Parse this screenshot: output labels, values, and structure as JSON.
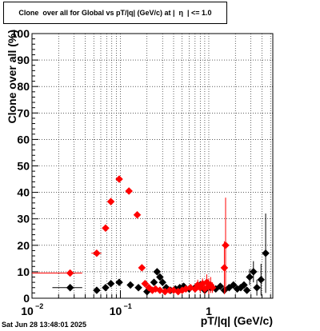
{
  "title": "Clone  over all for Global vs pT/|q| (GeV/c) at |  η  | <= 1.0",
  "footer": "Sat Jun 28 13:48:01 2025",
  "colors": {
    "series_black": "#000000",
    "series_red": "#ff0000",
    "grid": "#000000"
  },
  "chart_data": {
    "type": "scatter",
    "xlabel": "pT/|q| (GeV/c)",
    "ylabel": "Clone  over all (%)",
    "xscale": "log",
    "xlim": [
      0.01,
      5.3
    ],
    "ylim": [
      0,
      100
    ],
    "grid": true,
    "yticks": [
      "0",
      "10",
      "20",
      "30",
      "40",
      "50",
      "60",
      "70",
      "80",
      "90",
      "100"
    ],
    "xticks": [
      {
        "base": "10",
        "exp": "−2",
        "value": 0.01
      },
      {
        "base": "10",
        "exp": "−1",
        "value": 0.1
      },
      {
        "base": "1",
        "exp": "",
        "value": 1
      }
    ],
    "series": [
      {
        "color": "#000000",
        "points": [
          {
            "x": 0.027,
            "y": 4,
            "xerr": [
              0.017,
              0.037
            ],
            "yerr": 0
          },
          {
            "x": 0.054,
            "y": 3,
            "yerr": 0
          },
          {
            "x": 0.068,
            "y": 4,
            "yerr": 0
          },
          {
            "x": 0.078,
            "y": 5.5,
            "yerr": 0
          },
          {
            "x": 0.097,
            "y": 6,
            "yerr": 0
          },
          {
            "x": 0.13,
            "y": 5,
            "yerr": 0
          },
          {
            "x": 0.16,
            "y": 4,
            "yerr": 0
          },
          {
            "x": 0.2,
            "y": 2.5,
            "yerr": 0
          },
          {
            "x": 0.24,
            "y": 6,
            "yerr": 0
          },
          {
            "x": 0.26,
            "y": 10,
            "yerr": 0
          },
          {
            "x": 0.28,
            "y": 8,
            "yerr": 0
          },
          {
            "x": 0.3,
            "y": 6,
            "yerr": 0
          },
          {
            "x": 0.33,
            "y": 4,
            "yerr": 0
          },
          {
            "x": 0.37,
            "y": 3,
            "yerr": 0
          },
          {
            "x": 0.42,
            "y": 3.5,
            "yerr": 0
          },
          {
            "x": 0.47,
            "y": 4,
            "yerr": 0
          },
          {
            "x": 0.52,
            "y": 4.5,
            "yerr": 0
          },
          {
            "x": 0.6,
            "y": 3.5,
            "yerr": 0
          },
          {
            "x": 0.7,
            "y": 4,
            "yerr": 0
          },
          {
            "x": 0.8,
            "y": 5,
            "yerr": 0
          },
          {
            "x": 0.9,
            "y": 3,
            "yerr": 0
          },
          {
            "x": 1.05,
            "y": 4,
            "yerr": 0
          },
          {
            "x": 1.2,
            "y": 3.5,
            "yerr": 0
          },
          {
            "x": 1.35,
            "y": 4.5,
            "yerr": 0
          },
          {
            "x": 1.5,
            "y": 3,
            "yerr": 0
          },
          {
            "x": 1.7,
            "y": 4,
            "yerr": 0
          },
          {
            "x": 1.9,
            "y": 5,
            "yerr": 0
          },
          {
            "x": 2.1,
            "y": 3.5,
            "yerr": 0
          },
          {
            "x": 2.3,
            "y": 4,
            "yerr": 0
          },
          {
            "x": 2.5,
            "y": 5,
            "yerr": 0
          },
          {
            "x": 2.7,
            "y": 3,
            "yerr": 0
          },
          {
            "x": 2.9,
            "y": 8,
            "yerr": 3
          },
          {
            "x": 3.2,
            "y": 10,
            "yerr": 4
          },
          {
            "x": 3.5,
            "y": 4,
            "yerr": 3
          },
          {
            "x": 3.9,
            "y": 7,
            "yerr": 6
          },
          {
            "x": 4.4,
            "y": 17,
            "yerr": 15
          }
        ]
      },
      {
        "color": "#ff0000",
        "points": [
          {
            "x": 0.027,
            "y": 9.5,
            "xerr": [
              0.01,
              0.037
            ],
            "yerr": 0
          },
          {
            "x": 0.054,
            "y": 17,
            "xerr": [
              0.047,
              0.061
            ],
            "yerr": 0
          },
          {
            "x": 0.068,
            "y": 26.5,
            "yerr": 0
          },
          {
            "x": 0.078,
            "y": 36.5,
            "yerr": 0
          },
          {
            "x": 0.097,
            "y": 45,
            "yerr": 0
          },
          {
            "x": 0.125,
            "y": 40.5,
            "yerr": 0
          },
          {
            "x": 0.155,
            "y": 31.5,
            "yerr": 0
          },
          {
            "x": 0.175,
            "y": 11.5,
            "yerr": 0
          },
          {
            "x": 0.19,
            "y": 5.5,
            "yerr": 0
          },
          {
            "x": 0.21,
            "y": 4,
            "yerr": 0
          },
          {
            "x": 0.23,
            "y": 3,
            "yerr": 0
          },
          {
            "x": 0.25,
            "y": 3.5,
            "yerr": 0
          },
          {
            "x": 0.28,
            "y": 3,
            "yerr": 0
          },
          {
            "x": 0.32,
            "y": 2.5,
            "yerr": 0
          },
          {
            "x": 0.36,
            "y": 3,
            "yerr": 0
          },
          {
            "x": 0.4,
            "y": 3,
            "yerr": 0
          },
          {
            "x": 0.45,
            "y": 2.5,
            "yerr": 0
          },
          {
            "x": 0.5,
            "y": 3,
            "yerr": 0
          },
          {
            "x": 0.55,
            "y": 3.5,
            "yerr": 0
          },
          {
            "x": 0.62,
            "y": 4,
            "yerr": 1
          },
          {
            "x": 0.7,
            "y": 3.5,
            "yerr": 1
          },
          {
            "x": 0.75,
            "y": 5,
            "yerr": 2
          },
          {
            "x": 0.8,
            "y": 4,
            "yerr": 2
          },
          {
            "x": 0.85,
            "y": 5.5,
            "yerr": 2
          },
          {
            "x": 0.9,
            "y": 3.5,
            "yerr": 2
          },
          {
            "x": 0.95,
            "y": 6,
            "yerr": 3
          },
          {
            "x": 1.0,
            "y": 4.5,
            "yerr": 3
          },
          {
            "x": 1.05,
            "y": 5,
            "yerr": 3
          },
          {
            "x": 1.1,
            "y": 4,
            "yerr": 2
          },
          {
            "x": 1.5,
            "y": 11.5,
            "yerr": 10
          },
          {
            "x": 1.55,
            "y": 20,
            "yerr": 18
          }
        ]
      }
    ]
  }
}
